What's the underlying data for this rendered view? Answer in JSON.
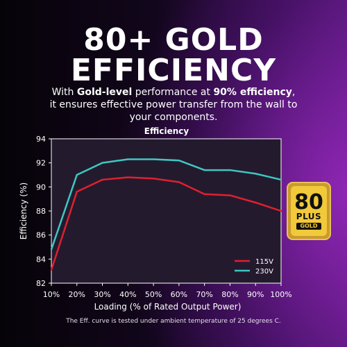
{
  "hero": {
    "line1": "80+ GOLD",
    "line2": "EFFICIENCY"
  },
  "subtitle": {
    "part1": "With ",
    "bold1": "Gold-level",
    "part2": " performance at ",
    "bold2": "90% efficiency",
    "part3": ",",
    "line2": "it ensures effective power transfer from the wall to",
    "line3": "your components."
  },
  "badge": {
    "number": "80",
    "plus": "PLUS",
    "tier": "GOLD"
  },
  "footnote": "The Eff. curve is tested under ambient temperature of 25 degrees C.",
  "colors": {
    "series_115v": "#e0202e",
    "series_230v": "#3ec7c2",
    "plot_bg": "#241a2e",
    "badge_gold": "#f1c93a"
  },
  "chart_data": {
    "type": "line",
    "title": "Efficiency",
    "xlabel": "Loading (% of Rated Output Power)",
    "ylabel": "Efficiency (%)",
    "categories": [
      "10%",
      "20%",
      "30%",
      "40%",
      "50%",
      "60%",
      "70%",
      "80%",
      "90%",
      "100%"
    ],
    "ylim": [
      82,
      94
    ],
    "yticks": [
      82,
      84,
      86,
      88,
      90,
      92,
      94
    ],
    "grid": false,
    "legend_position": "bottom-right",
    "series": [
      {
        "name": "115V",
        "color": "#e0202e",
        "values": [
          83.1,
          89.6,
          90.6,
          90.8,
          90.7,
          90.4,
          89.4,
          89.3,
          88.7,
          88.0
        ]
      },
      {
        "name": "230V",
        "color": "#3ec7c2",
        "values": [
          84.8,
          91.0,
          92.0,
          92.3,
          92.3,
          92.2,
          91.4,
          91.4,
          91.1,
          90.6
        ]
      }
    ]
  }
}
